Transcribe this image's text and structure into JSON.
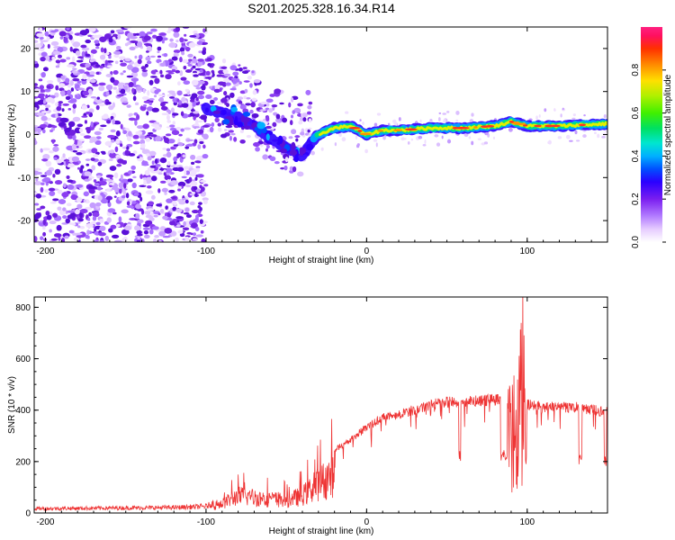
{
  "title": "S201.2025.328.16.34.R14",
  "chart_data": [
    {
      "type": "heatmap",
      "title": "S201.2025.328.16.34.R14",
      "xlabel": "Height of straight line (km)",
      "ylabel": "Frequency (Hz)",
      "xlim": [
        -207,
        150
      ],
      "ylim": [
        -25,
        25
      ],
      "xticks": [
        -200,
        -100,
        0,
        100
      ],
      "xtick_labels": [
        "-200",
        "-100",
        "0",
        "100"
      ],
      "yticks": [
        -20,
        -10,
        0,
        10,
        20
      ],
      "ytick_labels": [
        "-20",
        "-10",
        "0",
        "10",
        "20"
      ],
      "colorbar": {
        "label": "Normalized spectral amplitude",
        "range": [
          0.0,
          1.0
        ],
        "ticks": [
          0.0,
          0.2,
          0.4,
          0.6,
          0.8
        ],
        "tick_labels": [
          "0.0",
          "0.2",
          "0.4",
          "0.6",
          "0.8"
        ]
      },
      "signal_ridge": {
        "description_x_km": [
          -100,
          -90,
          -80,
          -70,
          -60,
          -50,
          -40,
          -35,
          -30,
          -20,
          -10,
          0,
          10,
          20,
          40,
          60,
          80,
          90,
          100,
          120,
          150
        ],
        "frequency_hz": [
          6,
          5,
          4,
          2,
          -1,
          -3,
          -5,
          -2,
          0,
          1.5,
          2,
          0,
          1,
          1,
          1.5,
          1.5,
          2,
          3,
          2,
          2,
          2.5
        ]
      },
      "noise_region_km": [
        -207,
        -100
      ]
    },
    {
      "type": "line",
      "xlabel": "Height of straight line (km)",
      "ylabel": "SNR (10 * v/v)",
      "xlim": [
        -207,
        150
      ],
      "ylim": [
        0,
        840
      ],
      "xticks": [
        -200,
        -100,
        0,
        100
      ],
      "xtick_labels": [
        "-200",
        "-100",
        "0",
        "100"
      ],
      "yticks": [
        0,
        200,
        400,
        600,
        800
      ],
      "ytick_labels": [
        "0",
        "200",
        "400",
        "600",
        "800"
      ],
      "series": [
        {
          "name": "SNR",
          "color": "#ee3333",
          "envelope_x": [
            -207,
            -120,
            -100,
            -90,
            -80,
            -70,
            -60,
            -50,
            -40,
            -30,
            -20,
            -10,
            0,
            10,
            20,
            30,
            40,
            50,
            60,
            70,
            80,
            90,
            95,
            97,
            100,
            110,
            120,
            130,
            140,
            150
          ],
          "envelope_y": [
            20,
            25,
            30,
            60,
            110,
            100,
            90,
            80,
            110,
            190,
            250,
            290,
            340,
            380,
            390,
            410,
            430,
            440,
            440,
            445,
            450,
            460,
            560,
            840,
            430,
            420,
            420,
            420,
            410,
            400
          ]
        }
      ]
    }
  ],
  "colors": {
    "snr_line": "#ee3333",
    "axis": "#000000"
  }
}
